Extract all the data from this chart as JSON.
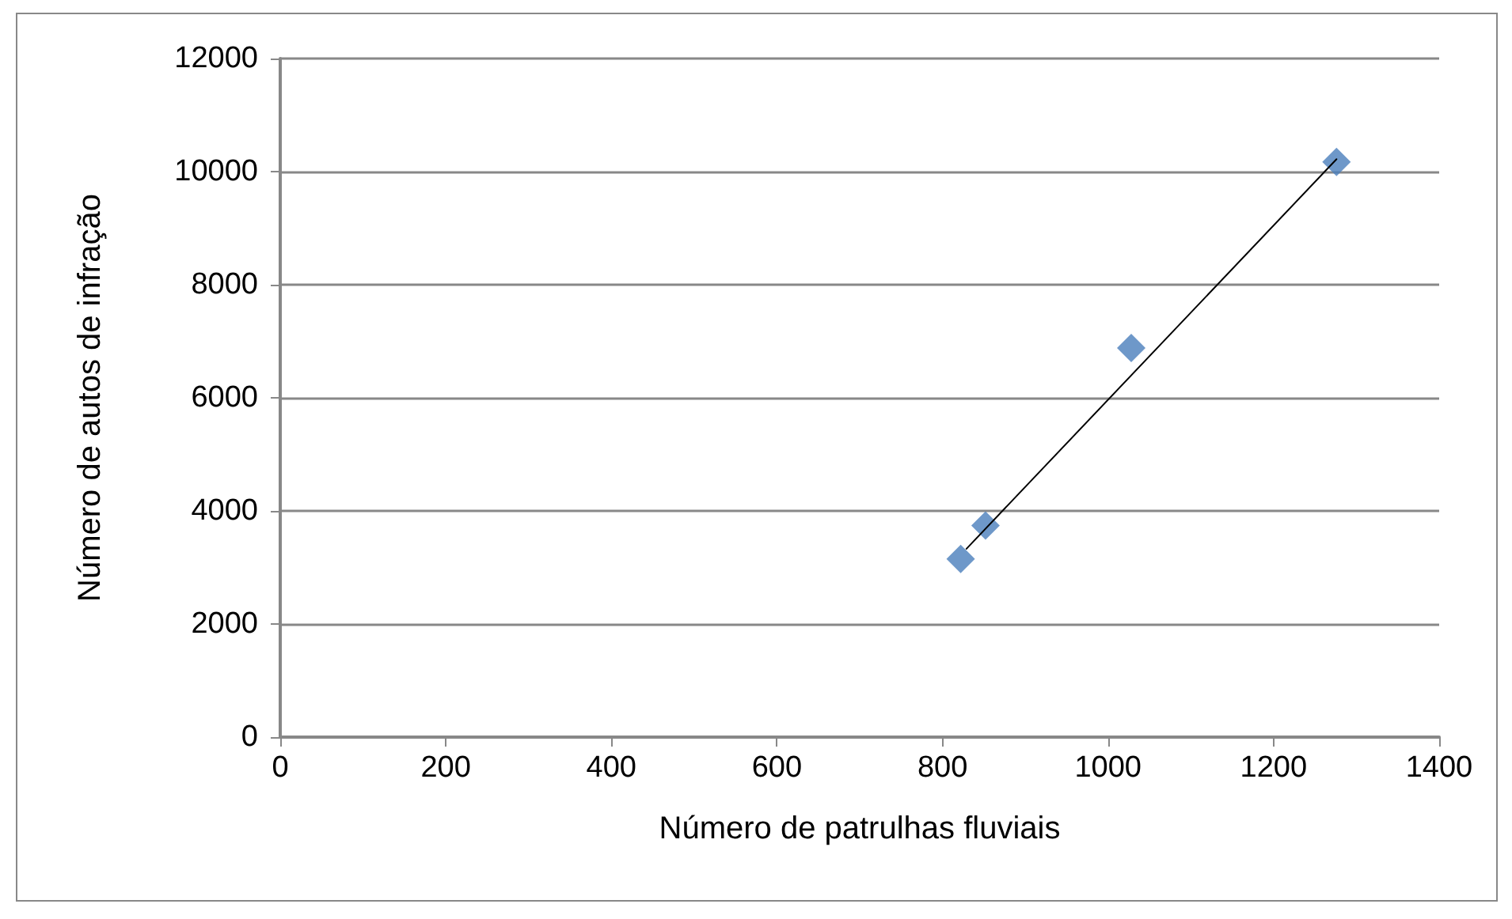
{
  "chart_data": {
    "type": "scatter",
    "xlabel": "Número de patrulhas fluviais",
    "ylabel": "Número de autos de infração",
    "series": [
      {
        "color": "#4a7ebb",
        "x": [
          822,
          852,
          1028,
          1276
        ],
        "values": [
          3150,
          3740,
          6880,
          10170
        ],
        "marker": "diamond"
      },
      {
        "type": "line",
        "color": "#000000",
        "x": [
          829,
          1276
        ],
        "values": [
          3330,
          10220
        ],
        "marker": "none",
        "line_style": "solid"
      }
    ],
    "xlim": [
      0,
      1400
    ],
    "xticks": [
      0,
      200,
      400,
      600,
      800,
      1000,
      1200,
      1400
    ],
    "ylim": [
      0,
      12000
    ],
    "yticks": [
      0,
      2000,
      4000,
      6000,
      8000,
      10000,
      12000
    ],
    "grid": "y"
  }
}
